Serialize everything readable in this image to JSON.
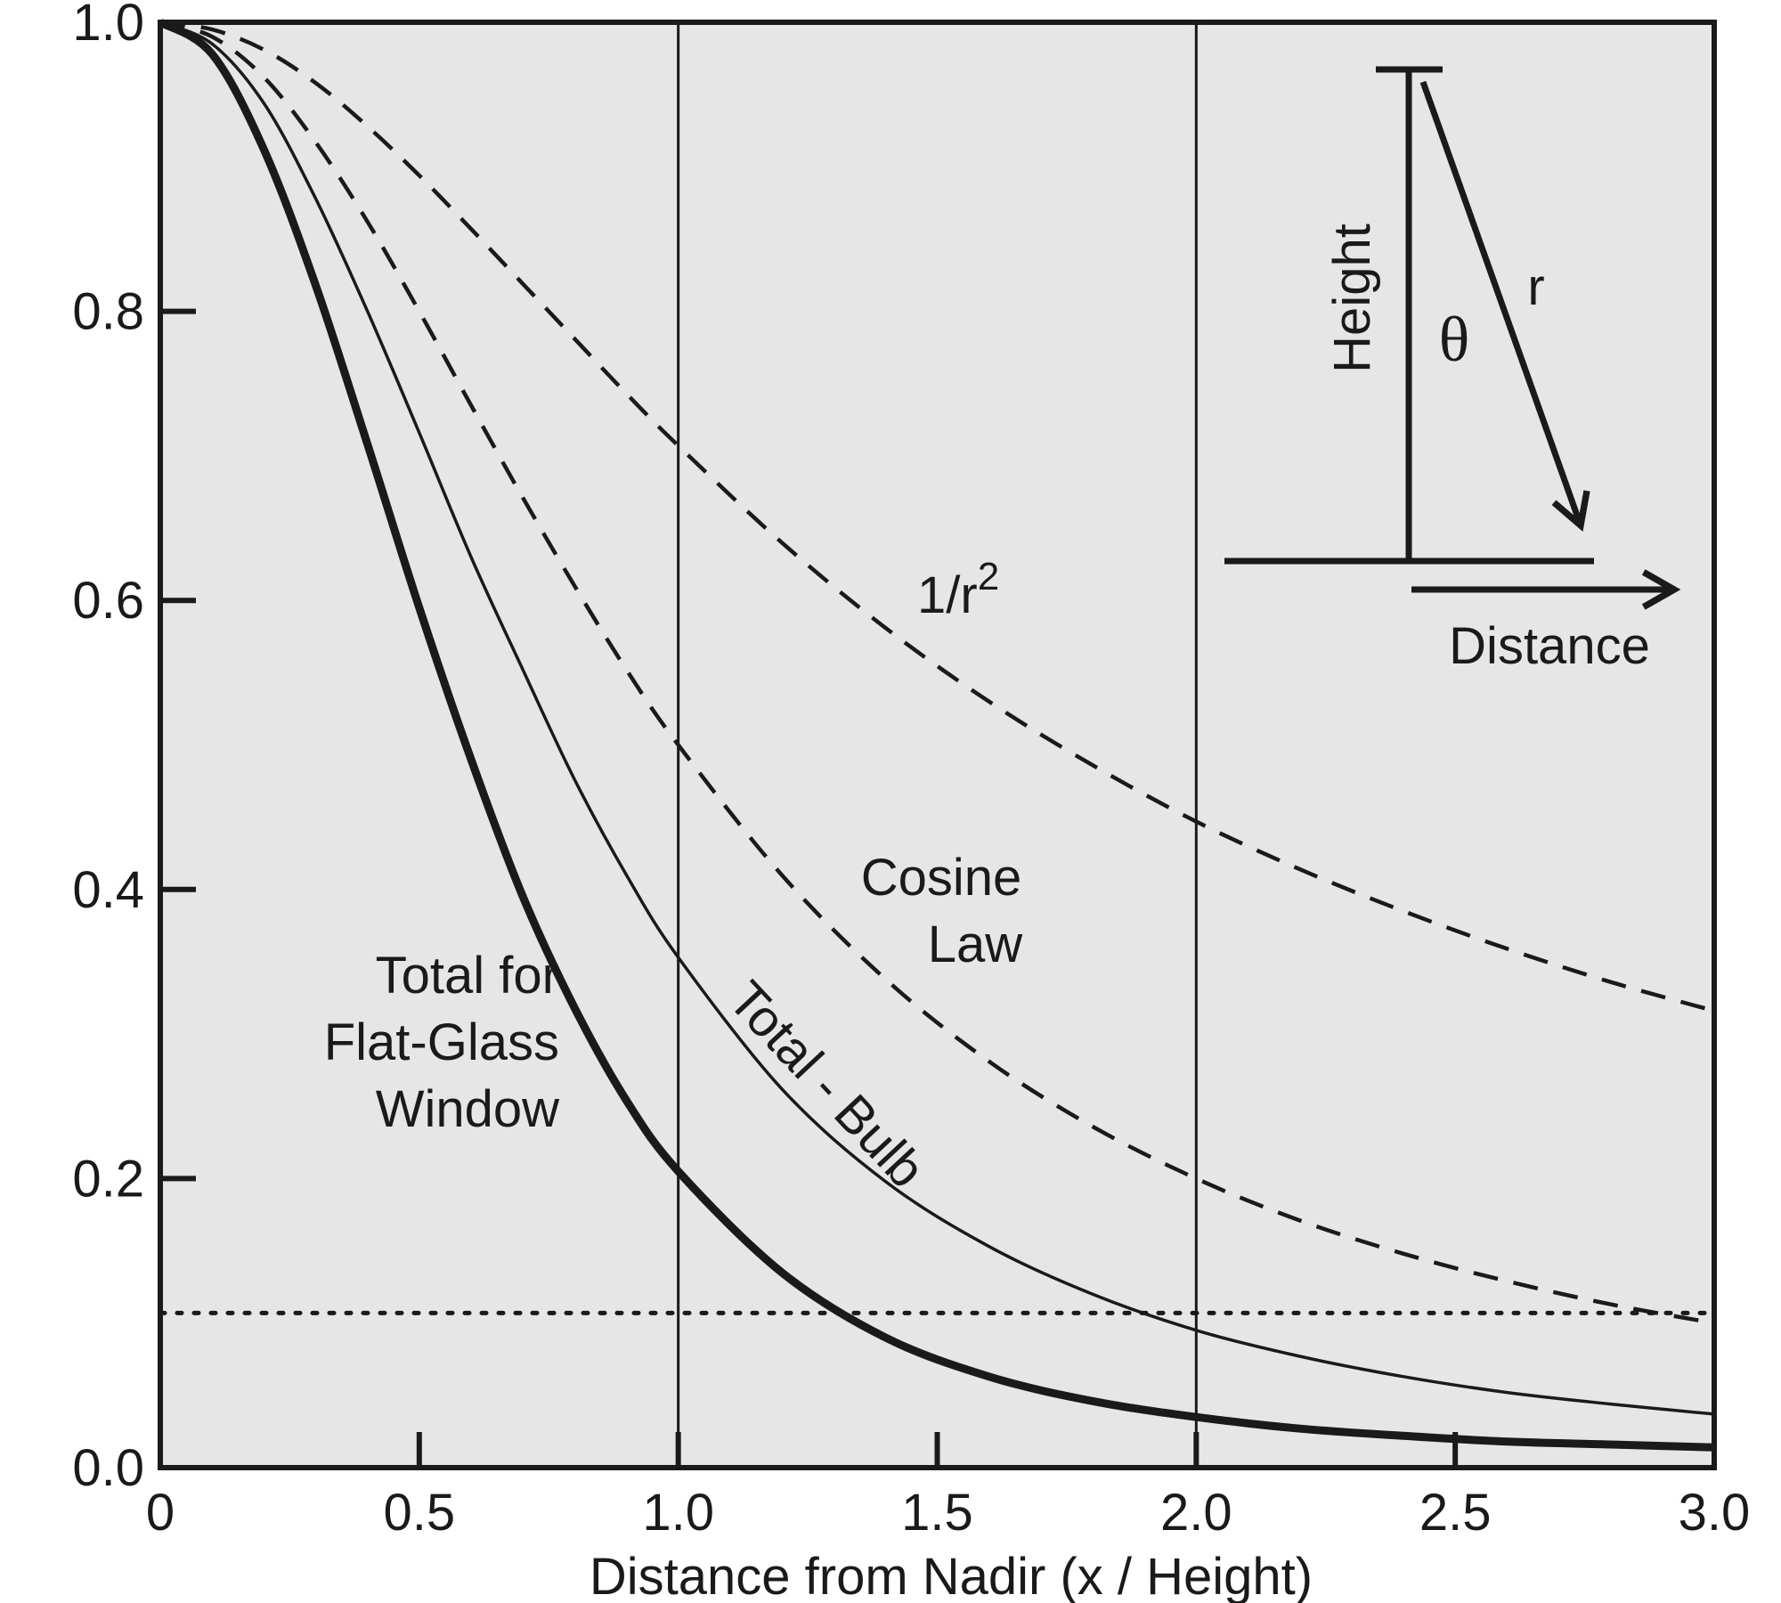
{
  "chart_data": {
    "type": "line",
    "xlabel": "Distance from Nadir (x / Height)",
    "ylabel": "",
    "xlim": [
      0,
      3.0
    ],
    "ylim": [
      0,
      1.0
    ],
    "x_ticks": [
      {
        "value": 0,
        "label": "0"
      },
      {
        "value": 0.5,
        "label": "0.5"
      },
      {
        "value": 1.0,
        "label": "1.0"
      },
      {
        "value": 1.5,
        "label": "1.5"
      },
      {
        "value": 2.0,
        "label": "2.0"
      },
      {
        "value": 2.5,
        "label": "2.5"
      },
      {
        "value": 3.0,
        "label": "3.0"
      }
    ],
    "y_ticks": [
      {
        "value": 0.0,
        "label": "0.0"
      },
      {
        "value": 0.2,
        "label": "0.2"
      },
      {
        "value": 0.4,
        "label": "0.4"
      },
      {
        "value": 0.6,
        "label": "0.6"
      },
      {
        "value": 0.8,
        "label": "0.8"
      },
      {
        "value": 1.0,
        "label": "1.0"
      }
    ],
    "vertical_reference_lines": [
      1.0,
      2.0
    ],
    "horizontal_reference_line": {
      "y": 0.107,
      "style": "dotted"
    },
    "background_color": "#e6e6e6",
    "line_color": "#1a1a1a",
    "x": [
      0,
      0.1,
      0.2,
      0.3,
      0.4,
      0.5,
      0.6,
      0.7,
      0.8,
      0.9,
      1.0,
      1.2,
      1.4,
      1.6,
      1.8,
      2.0,
      2.2,
      2.4,
      2.6,
      2.8,
      3.0
    ],
    "series": [
      {
        "style": "dashed",
        "values": [
          1.0,
          0.99,
          0.962,
          0.917,
          0.862,
          0.8,
          0.735,
          0.671,
          0.61,
          0.552,
          0.5,
          0.41,
          0.338,
          0.281,
          0.236,
          0.2,
          0.171,
          0.148,
          0.129,
          0.113,
          0.1
        ]
      },
      {
        "style": "dashed",
        "values": [
          1.0,
          0.995,
          0.981,
          0.958,
          0.928,
          0.894,
          0.857,
          0.819,
          0.781,
          0.743,
          0.707,
          0.64,
          0.581,
          0.53,
          0.486,
          0.447,
          0.414,
          0.385,
          0.359,
          0.336,
          0.316
        ]
      },
      {
        "style": "thin-solid",
        "values": [
          1.0,
          0.985,
          0.944,
          0.878,
          0.8,
          0.716,
          0.63,
          0.552,
          0.476,
          0.41,
          0.353,
          0.262,
          0.198,
          0.153,
          0.12,
          0.095,
          0.077,
          0.063,
          0.052,
          0.044,
          0.037
        ]
      },
      {
        "style": "thick-solid",
        "values": [
          1.0,
          0.978,
          0.912,
          0.818,
          0.708,
          0.595,
          0.49,
          0.395,
          0.318,
          0.254,
          0.205,
          0.135,
          0.09,
          0.063,
          0.046,
          0.035,
          0.027,
          0.022,
          0.018,
          0.016,
          0.014
        ]
      }
    ],
    "annotations": {
      "inv_square_base": "1/r",
      "inv_square_exp": "2",
      "cosine_line1": "Cosine",
      "cosine_line2": "Law",
      "total_bulb": "Total - Bulb",
      "flat_line1": "Total for",
      "flat_line2": "Flat-Glass",
      "flat_line3": "Window"
    },
    "inset": {
      "height_label": "Height",
      "theta_label": "θ",
      "r_label": "r",
      "distance_label": "Distance"
    }
  }
}
